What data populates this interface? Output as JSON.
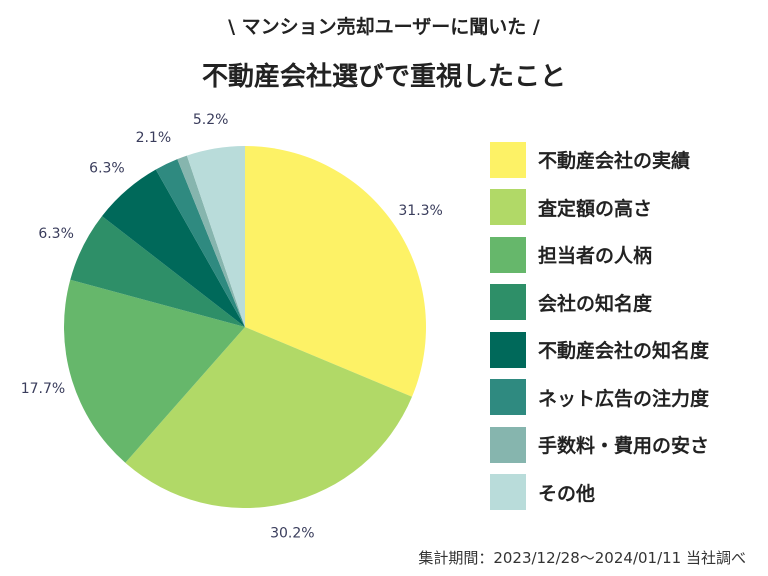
{
  "header": {
    "subtitle": "\\ マンション売却ユーザーに聞いた /",
    "title": "不動産会社選びで重視したこと"
  },
  "chart_data": {
    "type": "pie",
    "start": "12 o'clock",
    "direction": "clockwise",
    "legend_position": "right",
    "categories": [
      "不動産会社の実績",
      "査定額の高さ",
      "担当者の人柄",
      "会社の知名度",
      "不動産会社の知名度",
      "ネット広告の注力度",
      "手数料・費用の安さ",
      "その他"
    ],
    "values": [
      31.3,
      30.2,
      17.7,
      6.3,
      6.3,
      2.1,
      0.9,
      5.2
    ],
    "data_labels": [
      "31.3%",
      "30.2%",
      "17.7%",
      "6.3%",
      "6.3%",
      "2.1%",
      "",
      "5.2%"
    ],
    "colors": [
      "#fdf266",
      "#b1d967",
      "#66b76b",
      "#2e8f68",
      "#00695a",
      "#2f8a80",
      "#86b5ae",
      "#b9dcda"
    ]
  },
  "footer": {
    "note": "集計期間：2023/12/28〜2024/01/11 当社調べ"
  }
}
